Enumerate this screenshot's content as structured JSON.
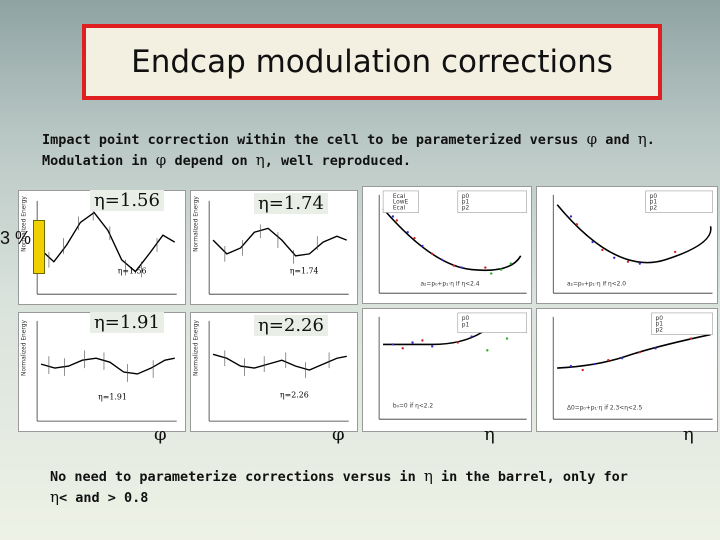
{
  "title": "Endcap modulation corrections",
  "intro": {
    "line1_a": "Impact point correction within the cell to be parameterized versus ",
    "line1_phi": "φ",
    "line1_b": " and ",
    "line1_eta": "η",
    "line1_c": ".",
    "line2_a": "Modulation in ",
    "line2_phi": "φ",
    "line2_b": " depend on ",
    "line2_eta": "η",
    "line2_c": ", well reproduced."
  },
  "eta_labels": [
    "η=1.56",
    "η=1.74",
    "η=1.91",
    "η=2.26"
  ],
  "inner_labels": [
    "η=1.56",
    "η=1.74",
    "η=1.91",
    "η=2.26"
  ],
  "axis_symbols": {
    "phi1": "φ",
    "phi2": "φ",
    "eta1": "η",
    "eta2": "η"
  },
  "scale_label": "3 %",
  "y_axis_title": "Normalized Energy",
  "legend_entries": [
    "Ecal",
    "LowE",
    "Ecal"
  ],
  "stat_labels": {
    "p0": "p0",
    "p1": "p1",
    "p2": "p2"
  },
  "fit_formula_a": "a₂=p₀+p₁·η  if η<2.4",
  "fit_formula_b": "a₂=p₀+p₁·η  if η<2.0",
  "fit_formula_c": "b₀=0       if η<2.2",
  "fit_formula_d": "Δ0=p₀+p₁·η  if 2.3<η<2.5",
  "bottom": {
    "line1_a": "No need to parameterize corrections versus in ",
    "line1_eta": "η",
    "line1_b": " in the barrel, only for",
    "line2_eta": "η",
    "line2_b": "< and > 0.8"
  }
}
